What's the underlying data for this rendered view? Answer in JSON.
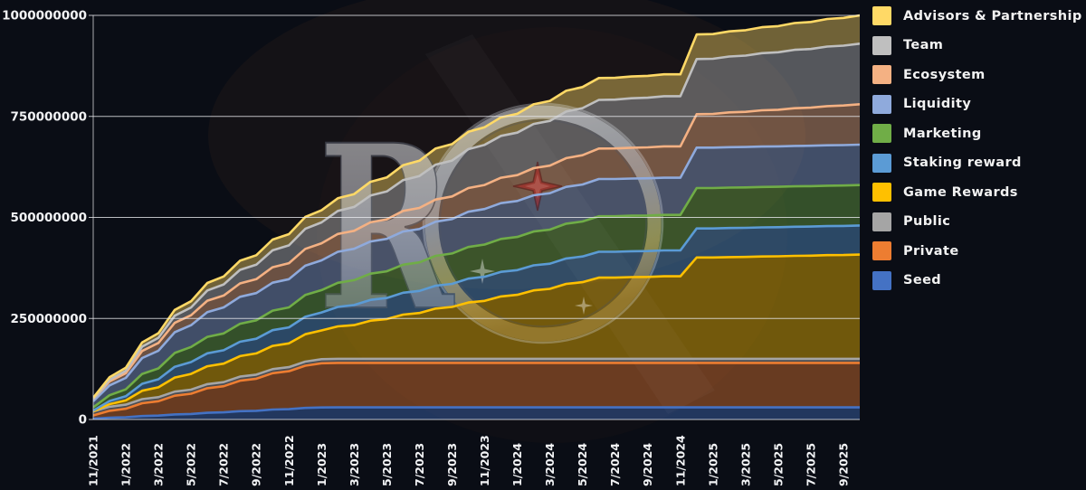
{
  "background_color": "#0a0d15",
  "axes": {
    "y_tick_labels": [
      "1000000000",
      "750000000",
      "500000000",
      "250000000",
      "0"
    ],
    "y_tick_values_millions": [
      1000,
      750,
      500,
      250,
      0
    ],
    "x_tick_labels": [
      "11/2021",
      "1/2022",
      "3/2022",
      "5/2022",
      "7/2022",
      "9/2022",
      "11/2022",
      "1/2023",
      "3/2023",
      "5/2023",
      "7/2023",
      "9/2023",
      "11/2023",
      "1/2024",
      "3/2024",
      "5/2024",
      "7/2024",
      "9/2024",
      "11/2024",
      "1/2025",
      "3/2025",
      "5/2025",
      "7/2025",
      "9/2025"
    ],
    "grid_color": "#e9eaee"
  },
  "watermark": {
    "letter": "R",
    "ring_silver": "#eef1f5",
    "ring_gold": "#c8a65a",
    "star_color": "#b81f1f",
    "star_highlight": "#e05252"
  },
  "chart_data": {
    "type": "area",
    "stacked": true,
    "title": "",
    "xlabel": "",
    "ylabel": "",
    "x_unit": "month",
    "x_start_label": "11/2021",
    "x_end_label": "9/2025",
    "months_total": 48,
    "y_range_tokens": [
      0,
      1000000000
    ],
    "total_supply_tokens": 1000000000,
    "value_unit": "millions_of_tokens",
    "grid": true,
    "legend_position": "right",
    "series_bottom_to_top": [
      {
        "name": "Seed",
        "color": "#4472C4",
        "final_allocation_millions": 30,
        "vesting_breakpoints": [
          [
            0,
            2
          ],
          [
            14,
            30
          ],
          [
            47,
            30
          ]
        ]
      },
      {
        "name": "Private",
        "color": "#ED7D31",
        "final_allocation_millions": 110,
        "vesting_breakpoints": [
          [
            0,
            8
          ],
          [
            14,
            110
          ],
          [
            47,
            110
          ]
        ]
      },
      {
        "name": "Public",
        "color": "#A5A5A5",
        "final_allocation_millions": 10,
        "vesting_breakpoints": [
          [
            0,
            10
          ],
          [
            47,
            10
          ]
        ]
      },
      {
        "name": "Game Rewards",
        "color": "#FFC000",
        "final_allocation_millions": 258,
        "vesting_breakpoints": [
          [
            0,
            0
          ],
          [
            1,
            5
          ],
          [
            6,
            40
          ],
          [
            12,
            60
          ],
          [
            16,
            85
          ],
          [
            22,
            130
          ],
          [
            28,
            175
          ],
          [
            31,
            200
          ],
          [
            36,
            205
          ],
          [
            37,
            250
          ],
          [
            47,
            258
          ]
        ]
      },
      {
        "name": "Staking reward",
        "color": "#5B9BD5",
        "final_allocation_millions": 72,
        "vesting_breakpoints": [
          [
            0,
            2
          ],
          [
            6,
            30
          ],
          [
            12,
            40
          ],
          [
            16,
            50
          ],
          [
            24,
            60
          ],
          [
            31,
            64
          ],
          [
            36,
            64
          ],
          [
            37,
            72
          ],
          [
            47,
            72
          ]
        ]
      },
      {
        "name": "Marketing",
        "color": "#70AD47",
        "final_allocation_millions": 100,
        "vesting_breakpoints": [
          [
            0,
            8
          ],
          [
            6,
            38
          ],
          [
            12,
            50
          ],
          [
            16,
            62
          ],
          [
            24,
            80
          ],
          [
            31,
            88
          ],
          [
            36,
            88
          ],
          [
            37,
            100
          ],
          [
            47,
            100
          ]
        ]
      },
      {
        "name": "Liquidity",
        "color": "#8FAADC",
        "final_allocation_millions": 100,
        "vesting_breakpoints": [
          [
            0,
            15
          ],
          [
            4,
            45
          ],
          [
            8,
            65
          ],
          [
            12,
            70
          ],
          [
            16,
            78
          ],
          [
            24,
            88
          ],
          [
            31,
            92
          ],
          [
            36,
            92
          ],
          [
            37,
            100
          ],
          [
            47,
            100
          ]
        ]
      },
      {
        "name": "Ecosystem",
        "color": "#F4B183",
        "final_allocation_millions": 100,
        "vesting_breakpoints": [
          [
            0,
            5
          ],
          [
            4,
            20
          ],
          [
            12,
            40
          ],
          [
            16,
            45
          ],
          [
            24,
            60
          ],
          [
            31,
            75
          ],
          [
            36,
            78
          ],
          [
            37,
            82
          ],
          [
            47,
            100
          ]
        ]
      },
      {
        "name": "Team",
        "color": "#BFBFBF",
        "final_allocation_millions": 150,
        "vesting_breakpoints": [
          [
            0,
            0
          ],
          [
            6,
            20
          ],
          [
            12,
            45
          ],
          [
            16,
            60
          ],
          [
            24,
            100
          ],
          [
            31,
            120
          ],
          [
            36,
            125
          ],
          [
            37,
            135
          ],
          [
            47,
            150
          ]
        ]
      },
      {
        "name": "Advisors & Partnership",
        "color": "#FFD966",
        "final_allocation_millions": 70,
        "vesting_breakpoints": [
          [
            0,
            4
          ],
          [
            6,
            16
          ],
          [
            12,
            28
          ],
          [
            16,
            32
          ],
          [
            24,
            44
          ],
          [
            31,
            54
          ],
          [
            36,
            54
          ],
          [
            37,
            60
          ],
          [
            47,
            70
          ]
        ]
      }
    ],
    "legend_top_to_bottom": [
      {
        "label": "Advisors & Partnership",
        "color": "#FFD966"
      },
      {
        "label": "Team",
        "color": "#BFBFBF"
      },
      {
        "label": "Ecosystem",
        "color": "#F4B183"
      },
      {
        "label": "Liquidity",
        "color": "#8FAADC"
      },
      {
        "label": "Marketing",
        "color": "#70AD47"
      },
      {
        "label": "Staking reward",
        "color": "#5B9BD5"
      },
      {
        "label": "Game Rewards",
        "color": "#FFC000"
      },
      {
        "label": "Public",
        "color": "#A5A5A5"
      },
      {
        "label": "Private",
        "color": "#ED7D31"
      },
      {
        "label": "Seed",
        "color": "#4472C4"
      }
    ]
  }
}
